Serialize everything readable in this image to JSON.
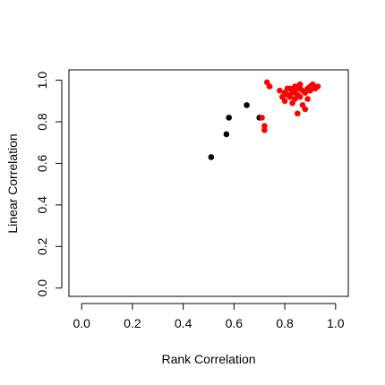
{
  "chart_data": {
    "type": "scatter",
    "title": "",
    "xlabel": "Rank Correlation",
    "ylabel": "Linear Correlation",
    "xlim": [
      -0.05,
      1.05
    ],
    "ylim": [
      -0.04,
      1.05
    ],
    "xticks": [
      "0.0",
      "0.2",
      "0.4",
      "0.6",
      "0.8",
      "1.0"
    ],
    "yticks": [
      "0.0",
      "0.2",
      "0.4",
      "0.6",
      "0.8",
      "1.0"
    ],
    "xtick_values": [
      0,
      0.2,
      0.4,
      0.6,
      0.8,
      1.0
    ],
    "ytick_values": [
      0,
      0.2,
      0.4,
      0.6,
      0.8,
      1.0
    ],
    "grid": false,
    "legend": "none",
    "series": [
      {
        "color": "#000000",
        "points": [
          [
            0.51,
            0.63
          ],
          [
            0.57,
            0.74
          ],
          [
            0.58,
            0.82
          ],
          [
            0.65,
            0.88
          ],
          [
            0.7,
            0.82
          ]
        ]
      },
      {
        "color": "#ff0000",
        "points": [
          [
            0.71,
            0.82
          ],
          [
            0.72,
            0.78
          ],
          [
            0.72,
            0.76
          ],
          [
            0.73,
            0.99
          ],
          [
            0.74,
            0.97
          ],
          [
            0.78,
            0.95
          ],
          [
            0.79,
            0.92
          ],
          [
            0.8,
            0.9
          ],
          [
            0.8,
            0.94
          ],
          [
            0.81,
            0.93
          ],
          [
            0.82,
            0.92
          ],
          [
            0.82,
            0.96
          ],
          [
            0.83,
            0.94
          ],
          [
            0.83,
            0.89
          ],
          [
            0.84,
            0.91
          ],
          [
            0.84,
            0.95
          ],
          [
            0.85,
            0.97
          ],
          [
            0.85,
            0.93
          ],
          [
            0.85,
            0.84
          ],
          [
            0.86,
            0.96
          ],
          [
            0.86,
            0.92
          ],
          [
            0.87,
            0.95
          ],
          [
            0.87,
            0.88
          ],
          [
            0.88,
            0.86
          ],
          [
            0.88,
            0.94
          ],
          [
            0.89,
            0.96
          ],
          [
            0.89,
            0.91
          ],
          [
            0.9,
            0.97
          ],
          [
            0.9,
            0.95
          ],
          [
            0.91,
            0.98
          ],
          [
            0.92,
            0.96
          ],
          [
            0.93,
            0.97
          ],
          [
            0.86,
            0.98
          ],
          [
            0.81,
            0.96
          ],
          [
            0.84,
            0.97
          ]
        ]
      }
    ]
  }
}
